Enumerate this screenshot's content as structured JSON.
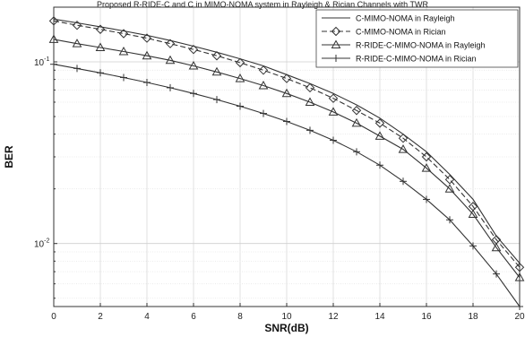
{
  "chart_data": {
    "type": "line",
    "title": "Proposed R-RIDE-C and C in MIMO-NOMA system in Rayleigh & Rician Channels with TWR",
    "xlabel": "SNR(dB)",
    "ylabel": "BER",
    "xlim": [
      0,
      20
    ],
    "ylim": [
      0.0045,
      0.2
    ],
    "yscale": "log",
    "grid": true,
    "legend_position": "top-right",
    "x": [
      0,
      1,
      2,
      3,
      4,
      5,
      6,
      7,
      8,
      9,
      10,
      11,
      12,
      13,
      14,
      15,
      16,
      17,
      18,
      19,
      20
    ],
    "x_ticks": [
      0,
      2,
      4,
      6,
      8,
      10,
      12,
      14,
      16,
      18,
      20
    ],
    "y_ticks": [
      {
        "value": 0.1,
        "base": "10",
        "exp": "-1"
      },
      {
        "value": 0.01,
        "base": "10",
        "exp": "-2"
      }
    ],
    "series": [
      {
        "name": "C-MIMO-NOMA in Rayleigh",
        "marker": "none",
        "dash": "solid",
        "values": [
          0.172,
          0.164,
          0.156,
          0.148,
          0.14,
          0.131,
          0.122,
          0.113,
          0.104,
          0.095,
          0.085,
          0.076,
          0.067,
          0.058,
          0.049,
          0.04,
          0.032,
          0.024,
          0.0175,
          0.011,
          0.0078
        ]
      },
      {
        "name": "C-MIMO-NOMA in Rician",
        "marker": "diamond",
        "dash": "dashed",
        "values": [
          0.168,
          0.159,
          0.151,
          0.143,
          0.135,
          0.126,
          0.117,
          0.108,
          0.099,
          0.09,
          0.081,
          0.072,
          0.063,
          0.054,
          0.046,
          0.038,
          0.03,
          0.0225,
          0.016,
          0.0105,
          0.0074
        ]
      },
      {
        "name": "R-RIDE-C-MIMO-NOMA in Rayleigh",
        "marker": "triangle",
        "dash": "solid",
        "values": [
          0.133,
          0.126,
          0.12,
          0.114,
          0.108,
          0.102,
          0.095,
          0.088,
          0.081,
          0.074,
          0.067,
          0.06,
          0.053,
          0.046,
          0.039,
          0.033,
          0.026,
          0.02,
          0.0145,
          0.0095,
          0.0065
        ]
      },
      {
        "name": "R-RIDE-C-MIMO-NOMA in Rician",
        "marker": "plus",
        "dash": "solid",
        "values": [
          0.097,
          0.092,
          0.087,
          0.082,
          0.077,
          0.072,
          0.067,
          0.062,
          0.057,
          0.052,
          0.047,
          0.042,
          0.037,
          0.032,
          0.027,
          0.022,
          0.0175,
          0.0135,
          0.0097,
          0.0068,
          0.0045
        ]
      }
    ]
  }
}
